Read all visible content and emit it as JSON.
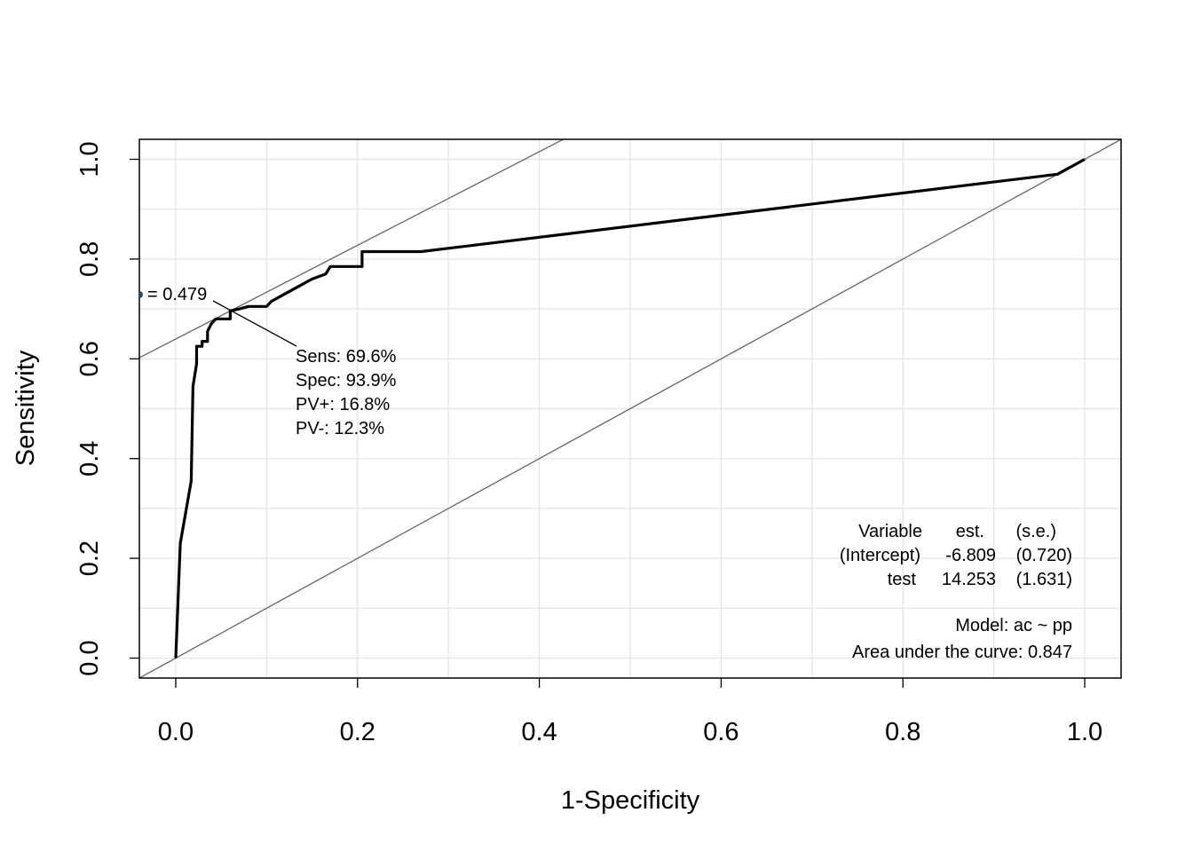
{
  "chart_data": {
    "type": "line",
    "xlabel": "1-Specificity",
    "ylabel": "Sensitivity",
    "xlim": [
      -0.04,
      1.04
    ],
    "ylim": [
      -0.04,
      1.04
    ],
    "x_ticks": [
      "0.0",
      "0.2",
      "0.4",
      "0.6",
      "0.8",
      "1.0"
    ],
    "y_ticks": [
      "0.0",
      "0.2",
      "0.4",
      "0.6",
      "0.8",
      "1.0"
    ],
    "grid": true,
    "series": [
      {
        "x": [
          0.0,
          0.005,
          0.017,
          0.019,
          0.023,
          0.023,
          0.029,
          0.029,
          0.035,
          0.035,
          0.039,
          0.044,
          0.06,
          0.06,
          0.07,
          0.08,
          0.1,
          0.105,
          0.12,
          0.15,
          0.165,
          0.17,
          0.205,
          0.205,
          0.27,
          0.97,
          1.0
        ],
        "y": [
          0.0,
          0.23,
          0.355,
          0.545,
          0.59,
          0.625,
          0.625,
          0.635,
          0.635,
          0.655,
          0.67,
          0.68,
          0.68,
          0.696,
          0.7,
          0.705,
          0.705,
          0.715,
          0.73,
          0.76,
          0.77,
          0.785,
          0.785,
          0.815,
          0.815,
          0.97,
          1.0
        ]
      }
    ],
    "reference_lines": [
      {
        "slope": 1,
        "intercept": 0
      },
      {
        "slope": 0.939,
        "intercept": 0.6397
      }
    ],
    "optimal_point": {
      "x": 0.061,
      "y": 0.696,
      "label": "= 0.479",
      "stats": [
        "Sens: 69.6%",
        "Spec: 93.9%",
        "PV+: 16.8%",
        "PV-: 12.3%"
      ]
    },
    "coef_table": {
      "headers": [
        "Variable",
        "est.",
        "(s.e.)"
      ],
      "rows": [
        [
          "(Intercept)",
          "-6.809",
          "(0.720)"
        ],
        [
          "test",
          "14.253",
          "(1.631)"
        ]
      ],
      "model": "Model:  ac ~ pp",
      "auc": "Area under the curve: 0.847"
    }
  }
}
